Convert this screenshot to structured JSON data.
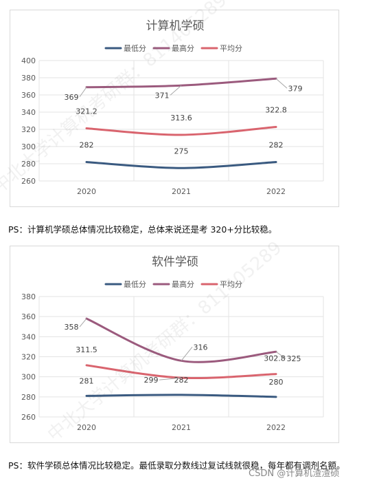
{
  "chart_data": [
    {
      "type": "line",
      "title": "计算机学硕",
      "categories": [
        "2020",
        "2021",
        "2022"
      ],
      "ylim": [
        260,
        400
      ],
      "yticks": [
        260,
        280,
        300,
        320,
        340,
        360,
        380,
        400
      ],
      "grid": true,
      "legend_position": "top",
      "series": [
        {
          "name": "最低分",
          "values": [
            282,
            275,
            282
          ],
          "color": "#3a5a80"
        },
        {
          "name": "最高分",
          "values": [
            369,
            371,
            379
          ],
          "color": "#9b5a7d"
        },
        {
          "name": "平均分",
          "values": [
            321.2,
            313.6,
            322.8
          ],
          "color": "#d9646e"
        }
      ]
    },
    {
      "type": "line",
      "title": "软件学硕",
      "categories": [
        "2020",
        "2021",
        "2022"
      ],
      "ylim": [
        260,
        380
      ],
      "yticks": [
        260,
        280,
        300,
        320,
        340,
        360,
        380
      ],
      "grid": true,
      "legend_position": "top",
      "series": [
        {
          "name": "最低分",
          "values": [
            281,
            282,
            280
          ],
          "color": "#3a5a80"
        },
        {
          "name": "最高分",
          "values": [
            358,
            316,
            325
          ],
          "color": "#9b5a7d"
        },
        {
          "name": "平均分",
          "values": [
            311.5,
            299,
            302.8
          ],
          "color": "#d9646e"
        }
      ]
    }
  ],
  "notes": {
    "ps1": "PS：计算机学硕总体情况比较稳定，总体来说还是考 320+分比较稳。",
    "ps2": "PS：软件学硕总体情况比较稳定。最低录取分数线过复试线就很稳，每年都有调剂名额。"
  },
  "watermark": "中北大学计算机考研群：811405289",
  "credit": "CSDN @计算机渣渣硕"
}
